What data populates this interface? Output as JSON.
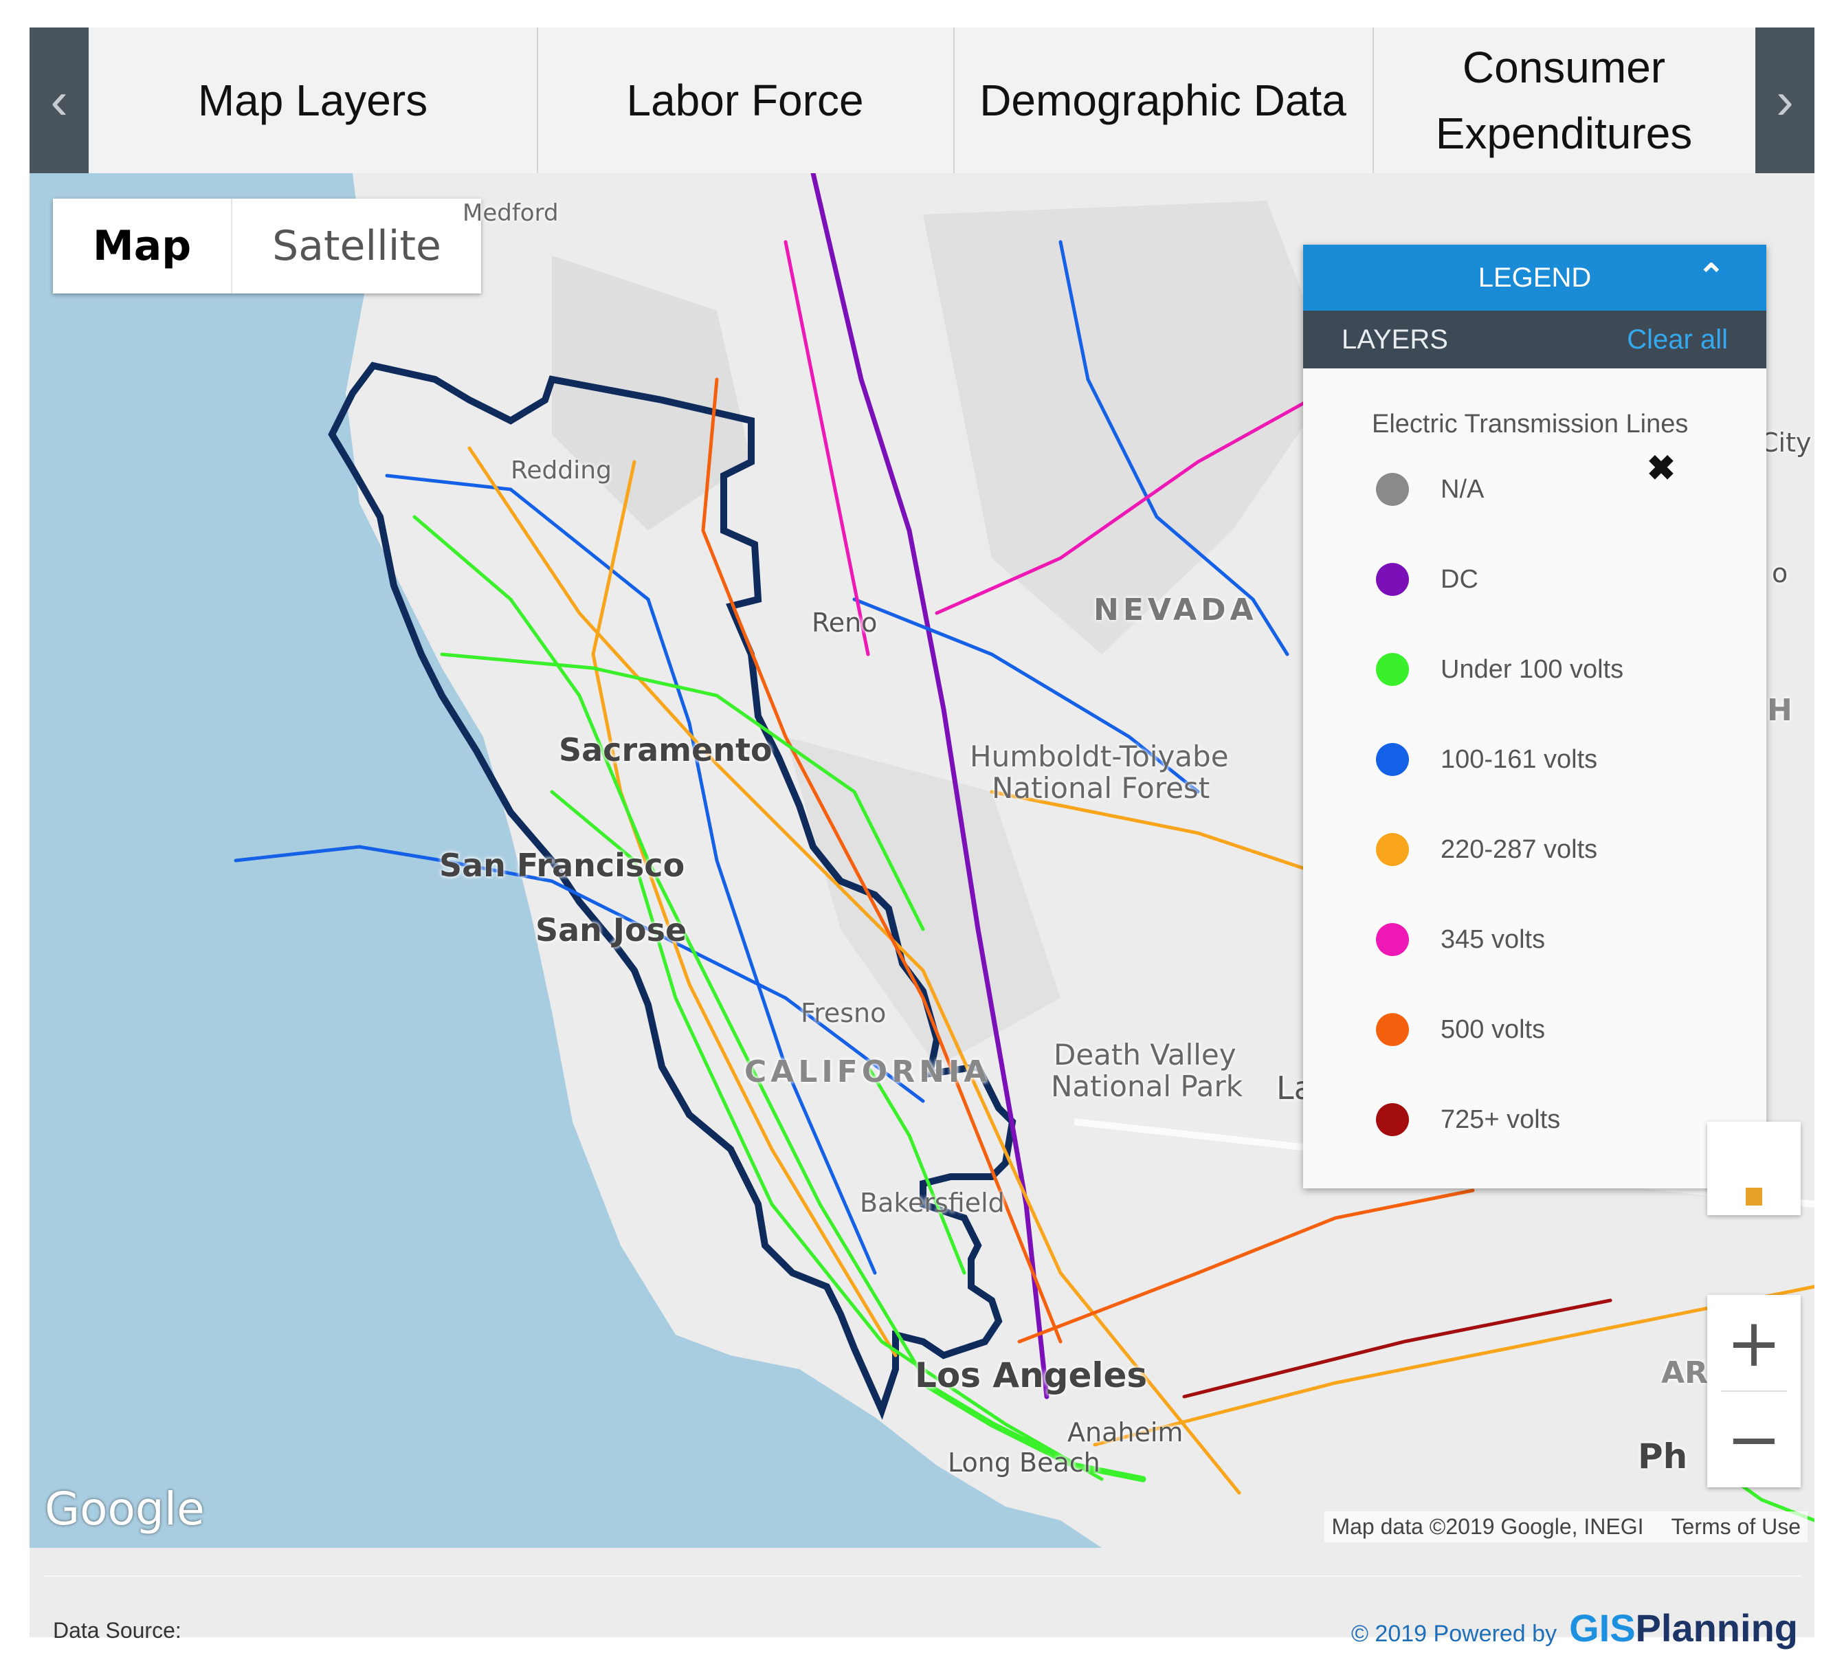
{
  "tabs": {
    "prev_icon": "chevron-left-icon",
    "next_icon": "chevron-right-icon",
    "items": [
      "Map Layers",
      "Labor Force",
      "Demographic Data",
      "Consumer Expenditures"
    ]
  },
  "map_type": {
    "map": "Map",
    "satellite": "Satellite",
    "selected": "Map"
  },
  "map_labels": {
    "medford": "Medford",
    "redding": "Redding",
    "reno": "Reno",
    "nevada": "NEVADA",
    "humboldt": "Humboldt-Toiyabe",
    "humboldt2": "National Forest",
    "sacramento": "Sacramento",
    "san_francisco": "San Francisco",
    "san_jose": "San Jose",
    "fresno": "Fresno",
    "california": "CALIFORNIA",
    "death_valley": "Death Valley",
    "death_valley2": "National Park",
    "la_partial": "La",
    "bakersfield": "Bakersfield",
    "los_angeles": "Los Angeles",
    "anaheim": "Anaheim",
    "long_beach": "Long Beach",
    "city_partial": "City",
    "h_partial": "H",
    "ar_partial": "AR",
    "ph_partial": "Ph",
    "o_partial": "o"
  },
  "legend": {
    "header": "LEGEND",
    "collapse_icon": "chevron-up-icon",
    "layers_label": "LAYERS",
    "clear_all": "Clear all",
    "layer_title": "Electric Transmission Lines",
    "close_icon": "close-icon",
    "items": [
      {
        "label": "N/A",
        "color": "#8a8a8a"
      },
      {
        "label": "DC",
        "color": "#7b10b8"
      },
      {
        "label": "Under 100 volts",
        "color": "#3af02a"
      },
      {
        "label": "100-161 volts",
        "color": "#1460e6"
      },
      {
        "label": "220-287 volts",
        "color": "#f8a51c"
      },
      {
        "label": "345 volts",
        "color": "#ee18b4"
      },
      {
        "label": "500 volts",
        "color": "#f5600f"
      },
      {
        "label": "725+ volts",
        "color": "#a30d0d"
      }
    ]
  },
  "zoom": {
    "in": "+",
    "out": "−"
  },
  "google_logo": "Google",
  "attribution": {
    "map_data": "Map data ©2019 Google, INEGI",
    "terms": "Terms of Use"
  },
  "footer": {
    "data_source": "Data Source:",
    "powered": "© 2019 Powered by",
    "brand_gis": "GIS",
    "brand_planning": "Planning"
  }
}
